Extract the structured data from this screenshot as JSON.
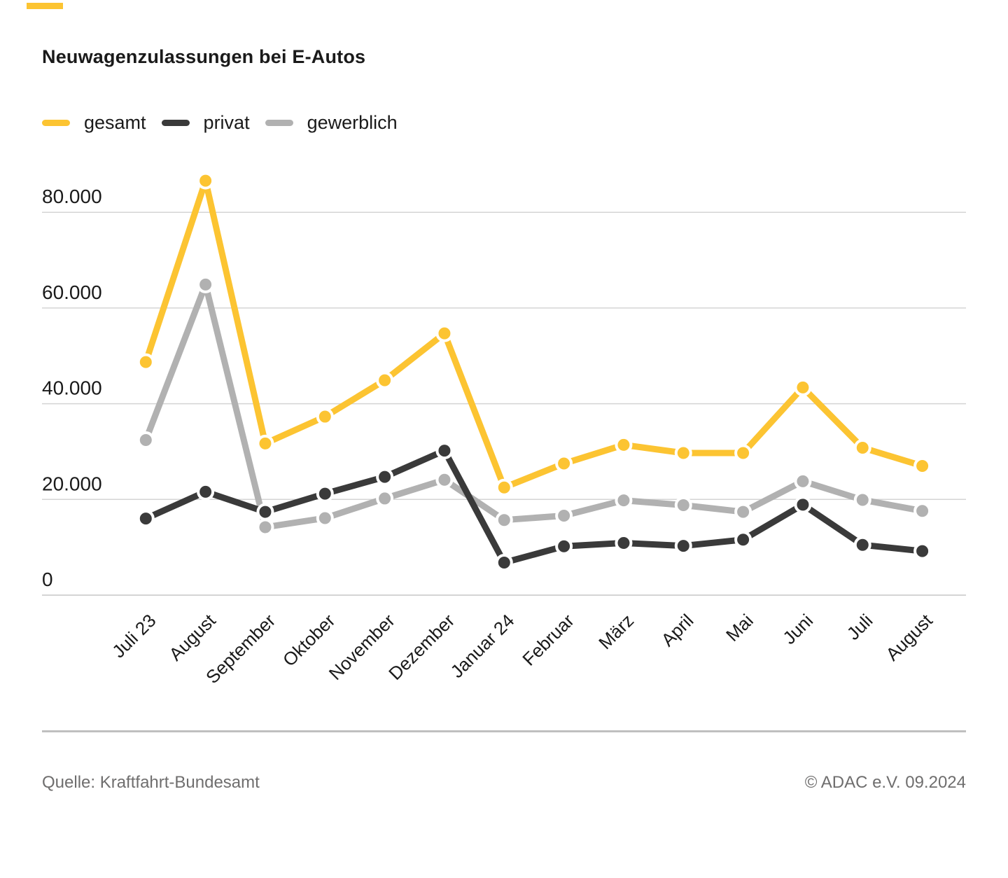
{
  "header": {
    "title": "Neuwagenzulassungen bei E-Autos"
  },
  "accent_color": "#FCC432",
  "legend": [
    {
      "label": "gesamt",
      "color": "#FCC432"
    },
    {
      "label": "privat",
      "color": "#3A3A3A"
    },
    {
      "label": "gewerblich",
      "color": "#B1B1B1"
    }
  ],
  "chart_data": {
    "type": "line",
    "title": "Neuwagenzulassungen bei E-Autos",
    "categories": [
      "Juli 23",
      "August",
      "September",
      "Oktober",
      "November",
      "Dezember",
      "Januar 24",
      "Februar",
      "März",
      "April",
      "Mai",
      "Juni",
      "Juli",
      "August"
    ],
    "series": [
      {
        "name": "gesamt",
        "color": "#FCC432",
        "values": [
          48700,
          86600,
          31700,
          37300,
          44900,
          54700,
          22500,
          27500,
          31400,
          29700,
          29700,
          43400,
          30800,
          27000
        ]
      },
      {
        "name": "privat",
        "color": "#3A3A3A",
        "values": [
          16000,
          21600,
          17400,
          21200,
          24700,
          30200,
          6800,
          10200,
          10900,
          10300,
          11600,
          18900,
          10500,
          9200
        ]
      },
      {
        "name": "gewerblich",
        "color": "#B1B1B1",
        "values": [
          32400,
          64900,
          14200,
          16100,
          20200,
          24100,
          15700,
          16600,
          19800,
          18800,
          17400,
          23800,
          19900,
          17600
        ]
      }
    ],
    "xlabel": "",
    "ylabel": "",
    "ylim": [
      0,
      80000
    ],
    "ytick_step": 20000,
    "ytick_labels": [
      "0",
      "20.000",
      "40.000",
      "60.000",
      "80.000"
    ],
    "grid": true,
    "legend_position": "top-left",
    "grid_color": "#d4d4d4",
    "axis_text_color": "#1a1a1a"
  },
  "footer": {
    "source": "Quelle: Kraftfahrt-Bundesamt",
    "copyright": "© ADAC e.V. 09.2024"
  }
}
